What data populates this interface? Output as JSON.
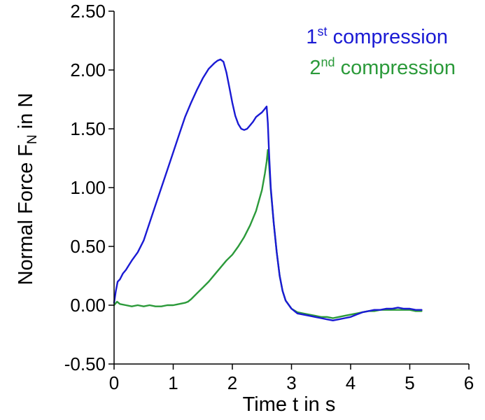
{
  "chart_data": {
    "type": "line",
    "title": "",
    "xlabel": "Time t in s",
    "ylabel": {
      "main": "Normal Force F",
      "sub": "N",
      "suffix": " in N"
    },
    "xlim": [
      0,
      6
    ],
    "ylim": [
      -0.5,
      2.5
    ],
    "x_ticks": [
      0,
      1,
      2,
      3,
      4,
      5,
      6
    ],
    "x_tick_labels": [
      "0",
      "1",
      "2",
      "3",
      "4",
      "5",
      "6"
    ],
    "y_ticks": [
      -0.5,
      0,
      0.5,
      1,
      1.5,
      2,
      2.5
    ],
    "y_tick_labels": [
      "-0.50",
      "0.00",
      "0.50",
      "1.00",
      "1.50",
      "2.00",
      "2.50"
    ],
    "grid": false,
    "legend_position": "top-right",
    "series": [
      {
        "name": "1st compression",
        "legend": {
          "num": "1",
          "sup": "st",
          "text": " compression"
        },
        "color": "#1a1ad4",
        "x": [
          0.0,
          0.03,
          0.06,
          0.1,
          0.15,
          0.2,
          0.25,
          0.3,
          0.4,
          0.5,
          0.6,
          0.7,
          0.8,
          0.9,
          1.0,
          1.1,
          1.2,
          1.3,
          1.4,
          1.5,
          1.6,
          1.7,
          1.75,
          1.8,
          1.85,
          1.9,
          1.95,
          2.0,
          2.05,
          2.1,
          2.15,
          2.2,
          2.25,
          2.3,
          2.35,
          2.4,
          2.45,
          2.5,
          2.55,
          2.58,
          2.6,
          2.62,
          2.65,
          2.7,
          2.75,
          2.8,
          2.85,
          2.9,
          3.0,
          3.1,
          3.2,
          3.3,
          3.4,
          3.5,
          3.6,
          3.7,
          3.8,
          3.9,
          4.0,
          4.1,
          4.2,
          4.3,
          4.4,
          4.5,
          4.6,
          4.7,
          4.8,
          4.9,
          5.0,
          5.1,
          5.2
        ],
        "y": [
          0.02,
          0.12,
          0.2,
          0.22,
          0.27,
          0.3,
          0.34,
          0.38,
          0.45,
          0.55,
          0.7,
          0.85,
          1.0,
          1.15,
          1.3,
          1.45,
          1.6,
          1.72,
          1.83,
          1.93,
          2.01,
          2.06,
          2.08,
          2.09,
          2.07,
          1.98,
          1.85,
          1.72,
          1.61,
          1.54,
          1.5,
          1.49,
          1.5,
          1.53,
          1.56,
          1.6,
          1.62,
          1.64,
          1.67,
          1.69,
          1.55,
          1.3,
          1.0,
          0.7,
          0.45,
          0.25,
          0.12,
          0.04,
          -0.03,
          -0.07,
          -0.08,
          -0.09,
          -0.1,
          -0.11,
          -0.12,
          -0.13,
          -0.12,
          -0.11,
          -0.1,
          -0.08,
          -0.06,
          -0.05,
          -0.04,
          -0.04,
          -0.03,
          -0.03,
          -0.02,
          -0.03,
          -0.03,
          -0.04,
          -0.04
        ]
      },
      {
        "name": "2nd compression",
        "legend": {
          "num": "2",
          "sup": "nd",
          "text": " compression"
        },
        "color": "#2b9a3a",
        "x": [
          0.0,
          0.05,
          0.1,
          0.2,
          0.3,
          0.4,
          0.5,
          0.6,
          0.7,
          0.8,
          0.9,
          1.0,
          1.1,
          1.2,
          1.25,
          1.3,
          1.4,
          1.5,
          1.6,
          1.7,
          1.8,
          1.9,
          2.0,
          2.1,
          2.2,
          2.3,
          2.4,
          2.5,
          2.55,
          2.58,
          2.6,
          2.62,
          2.65,
          2.7,
          2.75,
          2.8,
          2.85,
          2.9,
          3.0,
          3.1,
          3.2,
          3.3,
          3.4,
          3.5,
          3.6,
          3.7,
          3.8,
          3.9,
          4.0,
          4.1,
          4.2,
          4.3,
          4.4,
          4.5,
          4.6,
          4.7,
          4.8,
          4.9,
          5.0,
          5.1,
          5.2
        ],
        "y": [
          0.0,
          0.03,
          0.01,
          0.0,
          -0.01,
          0.0,
          -0.01,
          0.0,
          -0.01,
          -0.01,
          0.0,
          0.0,
          0.01,
          0.02,
          0.03,
          0.05,
          0.1,
          0.15,
          0.2,
          0.26,
          0.32,
          0.38,
          0.43,
          0.5,
          0.58,
          0.68,
          0.8,
          0.98,
          1.12,
          1.22,
          1.32,
          1.2,
          0.98,
          0.7,
          0.45,
          0.25,
          0.12,
          0.04,
          -0.03,
          -0.06,
          -0.07,
          -0.08,
          -0.09,
          -0.1,
          -0.1,
          -0.11,
          -0.1,
          -0.09,
          -0.08,
          -0.07,
          -0.06,
          -0.05,
          -0.05,
          -0.04,
          -0.04,
          -0.04,
          -0.04,
          -0.04,
          -0.04,
          -0.05,
          -0.05
        ]
      }
    ]
  }
}
